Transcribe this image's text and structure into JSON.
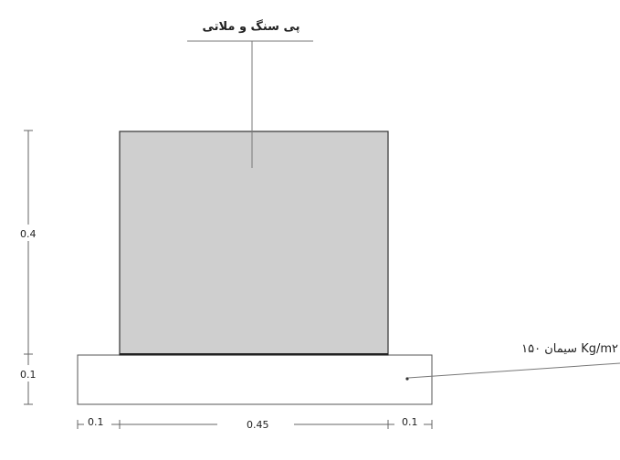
{
  "labels": {
    "top_callout": "پی سنگ و ملاتی",
    "right_callout": "سیمان ۱۵۰ Kg/m۲"
  },
  "dimensions": {
    "height_stone": "0.4",
    "height_slab": "0.1",
    "width_left": "0.1",
    "width_center": "0.45",
    "width_right": "0.1"
  },
  "colors": {
    "stone_fill": "#cfcfcf",
    "slab_fill": "#ffffff",
    "line": "#4a4a4a"
  }
}
